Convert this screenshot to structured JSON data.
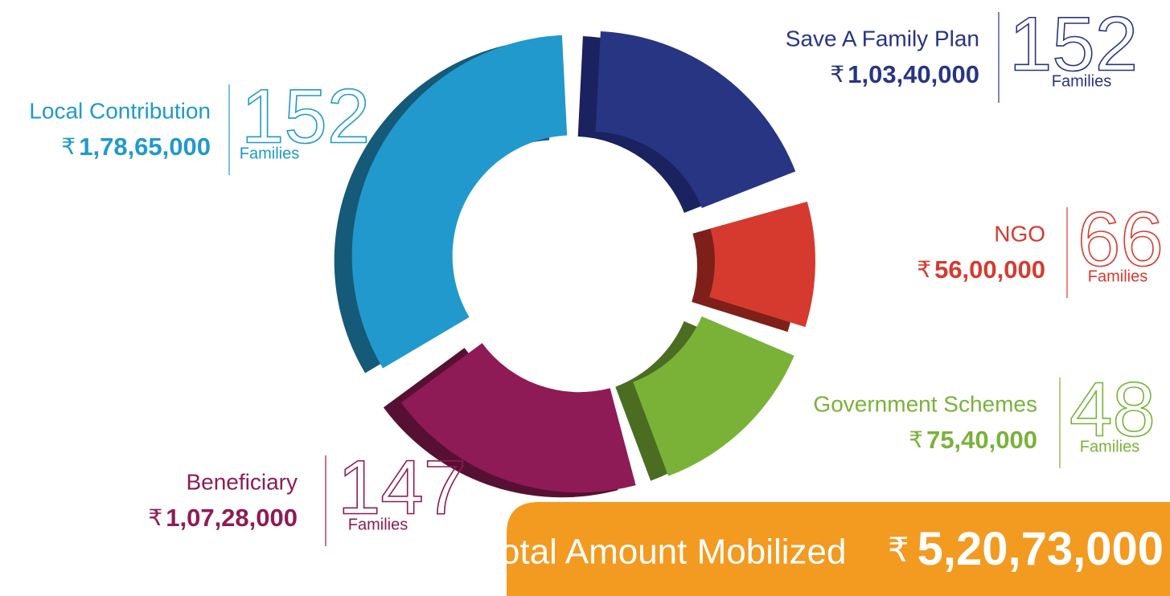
{
  "chart_data": {
    "type": "pie",
    "categories": [
      "Save A Family Plan",
      "NGO",
      "Government Schemes",
      "Beneficiary",
      "Local Contribution"
    ],
    "values": [
      10340000,
      5600000,
      7540000,
      10728000,
      17865000
    ],
    "value_labels": [
      "1,03,40,000",
      "56,00,000",
      "75,40,000",
      "1,07,28,000",
      "1,78,65,000"
    ],
    "colors": [
      "#283583",
      "#d63a2f",
      "#7ab238",
      "#8e1b55",
      "#2199cc"
    ],
    "side_colors": [
      "#1a2260",
      "#7e2019",
      "#4b6d22",
      "#561033",
      "#155a78"
    ],
    "families": [
      152,
      66,
      48,
      147,
      152
    ],
    "families_label": "Families",
    "currency": "₹",
    "total": {
      "label": "Total Amount Mobilized",
      "value": 52073000,
      "value_label": "5,20,73,000"
    }
  }
}
